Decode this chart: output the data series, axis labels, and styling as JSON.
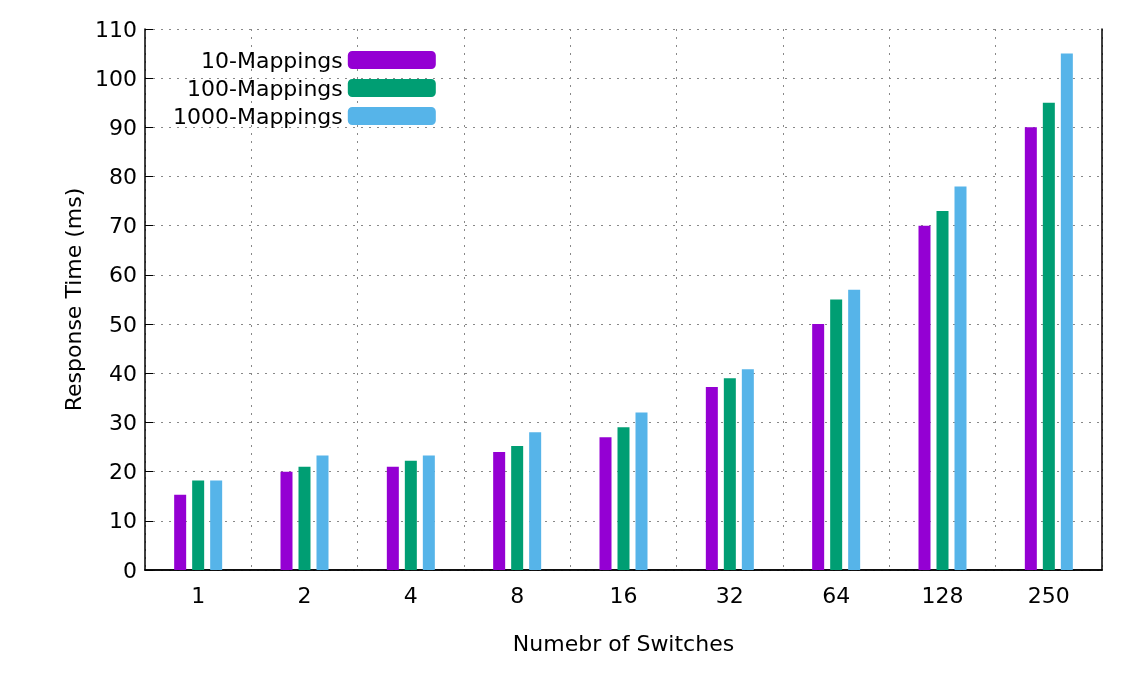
{
  "chart_data": {
    "type": "bar",
    "xlabel": "Numebr of Switches",
    "ylabel": "Response Time (ms)",
    "categories": [
      "1",
      "2",
      "4",
      "8",
      "16",
      "32",
      "64",
      "128",
      "250"
    ],
    "series": [
      {
        "name": "10-Mappings",
        "color": "#9400d3",
        "values": [
          15.3,
          20,
          21,
          24,
          27,
          37.2,
          50,
          70,
          90
        ]
      },
      {
        "name": "100-Mappings",
        "color": "#009e73",
        "values": [
          18.2,
          21,
          22.2,
          25.2,
          29,
          39,
          55,
          73,
          95
        ]
      },
      {
        "name": "1000-Mappings",
        "color": "#56b4e9",
        "values": [
          18.2,
          23.3,
          23.3,
          28,
          32,
          40.8,
          57,
          78,
          105
        ]
      }
    ],
    "ylim": [
      0,
      110
    ],
    "yticks": [
      0,
      10,
      20,
      30,
      40,
      50,
      60,
      70,
      80,
      90,
      100,
      110
    ],
    "grid": true,
    "legend": "top left"
  }
}
